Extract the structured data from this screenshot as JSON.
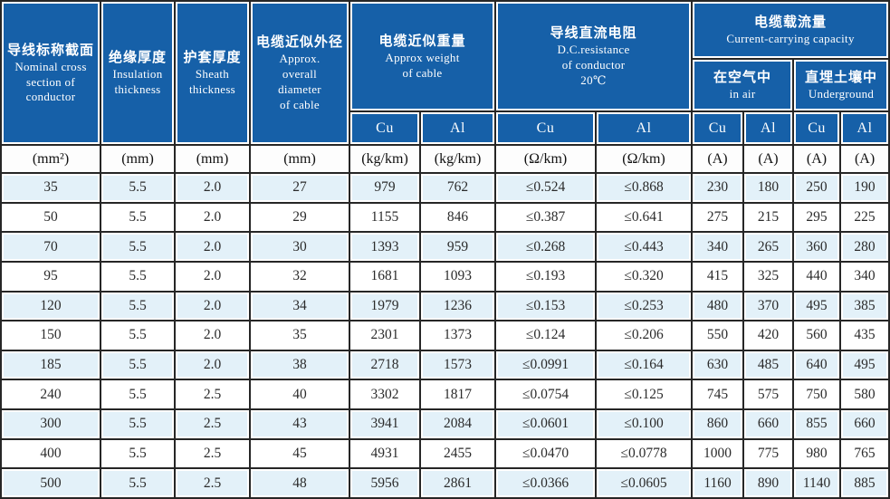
{
  "chart_data": {
    "type": "table",
    "title": "Cable specification table (bilingual zh/en)",
    "colors": {
      "header_blue": "#1660a8",
      "row_alt_blue": "#e3f1f9",
      "grid_line": "#262626",
      "header_text": "#ffffff",
      "body_text": "#2b2b2b"
    },
    "headers": {
      "nominal": {
        "zh": "导线标称截面",
        "en": "Nominal cross\nsection of\nconductor"
      },
      "insulation": {
        "zh": "绝缘厚度",
        "en": "Insulation\nthickness"
      },
      "sheath": {
        "zh": "护套厚度",
        "en": "Sheath\nthickness"
      },
      "diameter": {
        "zh": "电缆近似外径",
        "en": "Approx.\noverall\ndiameter\nof cable"
      },
      "weight": {
        "zh": "电缆近似重量",
        "en": "Approx weight\nof cable"
      },
      "resistance": {
        "zh": "导线直流电阻",
        "en": "D.C.resistance\nof conductor\n20℃"
      },
      "capacity": {
        "zh": "电缆载流量",
        "en": "Current-carrying capacity"
      },
      "air": {
        "zh": "在空气中",
        "en": "in air"
      },
      "underground": {
        "zh": "直埋土壤中",
        "en": "Underground"
      },
      "cu": "Cu",
      "al": "Al"
    },
    "units": [
      "(mm²)",
      "(mm)",
      "(mm)",
      "(mm)",
      "(kg/km)",
      "(kg/km)",
      "(Ω/km)",
      "(Ω/km)",
      "(A)",
      "(A)",
      "(A)",
      "(A)"
    ],
    "rows": [
      [
        "35",
        "5.5",
        "2.0",
        "27",
        "979",
        "762",
        "≤0.524",
        "≤0.868",
        "230",
        "180",
        "250",
        "190"
      ],
      [
        "50",
        "5.5",
        "2.0",
        "29",
        "1155",
        "846",
        "≤0.387",
        "≤0.641",
        "275",
        "215",
        "295",
        "225"
      ],
      [
        "70",
        "5.5",
        "2.0",
        "30",
        "1393",
        "959",
        "≤0.268",
        "≤0.443",
        "340",
        "265",
        "360",
        "280"
      ],
      [
        "95",
        "5.5",
        "2.0",
        "32",
        "1681",
        "1093",
        "≤0.193",
        "≤0.320",
        "415",
        "325",
        "440",
        "340"
      ],
      [
        "120",
        "5.5",
        "2.0",
        "34",
        "1979",
        "1236",
        "≤0.153",
        "≤0.253",
        "480",
        "370",
        "495",
        "385"
      ],
      [
        "150",
        "5.5",
        "2.0",
        "35",
        "2301",
        "1373",
        "≤0.124",
        "≤0.206",
        "550",
        "420",
        "560",
        "435"
      ],
      [
        "185",
        "5.5",
        "2.0",
        "38",
        "2718",
        "1573",
        "≤0.0991",
        "≤0.164",
        "630",
        "485",
        "640",
        "495"
      ],
      [
        "240",
        "5.5",
        "2.5",
        "40",
        "3302",
        "1817",
        "≤0.0754",
        "≤0.125",
        "745",
        "575",
        "750",
        "580"
      ],
      [
        "300",
        "5.5",
        "2.5",
        "43",
        "3941",
        "2084",
        "≤0.0601",
        "≤0.100",
        "860",
        "660",
        "855",
        "660"
      ],
      [
        "400",
        "5.5",
        "2.5",
        "45",
        "4931",
        "2455",
        "≤0.0470",
        "≤0.0778",
        "1000",
        "775",
        "980",
        "765"
      ],
      [
        "500",
        "5.5",
        "2.5",
        "48",
        "5956",
        "2861",
        "≤0.0366",
        "≤0.0605",
        "1160",
        "890",
        "1140",
        "885"
      ]
    ]
  }
}
